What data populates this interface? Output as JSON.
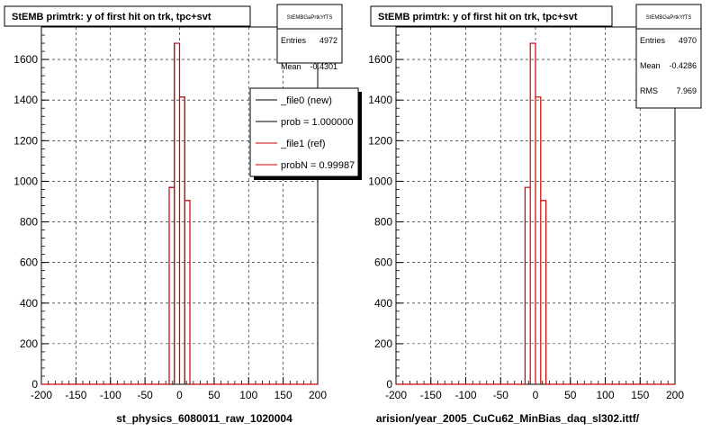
{
  "footer_text": "",
  "chart_data": [
    {
      "type": "bar",
      "title": "StEMB primtrk: y of first hit on trk, tpc+svt",
      "xlabel": "st_physics_6080011_raw_1020004",
      "ylabel": "",
      "xlim": [
        -200,
        200
      ],
      "ylim": [
        0,
        1760
      ],
      "x_ticks": [
        -200,
        -150,
        -100,
        -50,
        0,
        50,
        100,
        150,
        200
      ],
      "y_ticks": [
        0,
        200,
        400,
        600,
        800,
        1000,
        1200,
        1400,
        1600
      ],
      "grid": true,
      "bin_width": 7.5,
      "bins_x": [
        -15,
        -7.5,
        0,
        7.5,
        15
      ],
      "series": [
        {
          "name": "_file0 (new)",
          "color": "#000000",
          "values": [
            970,
            1680,
            1415,
            905,
            0
          ]
        },
        {
          "name": "_file1 (ref)",
          "color": "#cc0000",
          "values": [
            970,
            1680,
            1415,
            905,
            0
          ]
        }
      ],
      "stats": {
        "name": "StEMBGaPrtkYfTS",
        "rows": [
          {
            "label": "Entries",
            "value": "4972"
          },
          {
            "label": "Mean",
            "value": "-0.4301"
          }
        ]
      },
      "legend": {
        "position": "top-right",
        "entries": [
          "_file0 (new)",
          "prob = 1.000000",
          "_file1 (ref)",
          "probN = 0.99987"
        ]
      }
    },
    {
      "type": "bar",
      "title": "StEMB primtrk: y of first hit on trk, tpc+svt",
      "xlabel": "arision/year_2005_CuCu62_MinBias_daq_sl302.ittf/",
      "ylabel": "",
      "xlim": [
        -200,
        200
      ],
      "ylim": [
        0,
        1760
      ],
      "x_ticks": [
        -200,
        -150,
        -100,
        -50,
        0,
        50,
        100,
        150,
        200
      ],
      "y_ticks": [
        0,
        200,
        400,
        600,
        800,
        1000,
        1200,
        1400,
        1600
      ],
      "grid": true,
      "bin_width": 7.5,
      "bins_x": [
        -15,
        -7.5,
        0,
        7.5,
        15
      ],
      "series": [
        {
          "name": "",
          "color": "#cc0000",
          "values": [
            970,
            1680,
            1415,
            905,
            0
          ]
        }
      ],
      "stats": {
        "name": "StEMBGaPrtkYfTS",
        "rows": [
          {
            "label": "Entries",
            "value": "4970"
          },
          {
            "label": "Mean",
            "value": "-0.4286"
          },
          {
            "label": "RMS",
            "value": "7.969"
          }
        ]
      }
    }
  ]
}
